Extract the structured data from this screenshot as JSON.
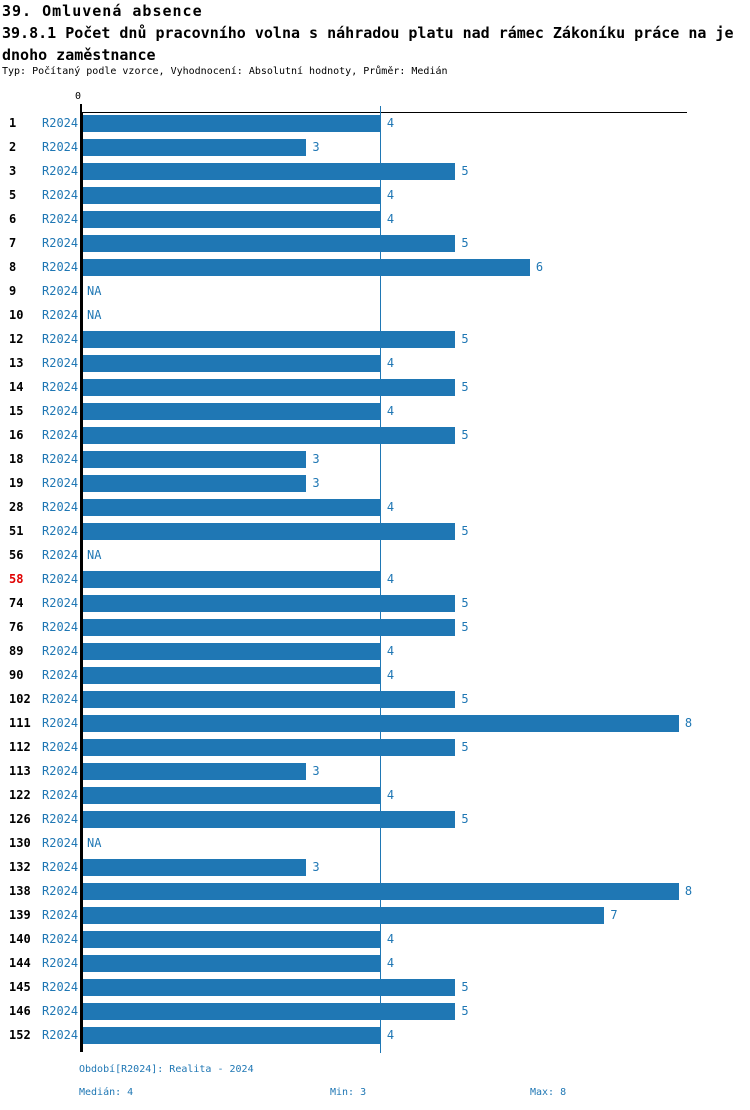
{
  "header": {
    "section_title": "39. Omluvená absence",
    "metric_title_line1": "39.8.1 Počet dnů pracovního volna s náhradou platu nad rámec Zákoníku práce na je",
    "metric_title_line2": "dnoho zaměstnance",
    "meta": "Typ: Počítaný podle vzorce, Vyhodnocení: Absolutní hodnoty, Průměr: Medián"
  },
  "chart_data": {
    "type": "bar",
    "orientation": "horizontal",
    "title": "39.8.1 Počet dnů pracovního volna s náhradou platu nad rámec Zákoníku práce na jednoho zaměstnance",
    "series_label": "R2024",
    "na_label": "NA",
    "zero_tick_label": "0",
    "xlim": [
      0,
      8.15
    ],
    "grid": false,
    "median_reference_line": 4,
    "highlighted_row_id": "58",
    "bar_color": "#1f77b4",
    "label_color": "#1f77b4",
    "row_number_color": "#000000",
    "highlight_color": "#e00000",
    "rows": [
      {
        "id": "1",
        "value": 4
      },
      {
        "id": "2",
        "value": 3
      },
      {
        "id": "3",
        "value": 5
      },
      {
        "id": "5",
        "value": 4
      },
      {
        "id": "6",
        "value": 4
      },
      {
        "id": "7",
        "value": 5
      },
      {
        "id": "8",
        "value": 6
      },
      {
        "id": "9",
        "value": null
      },
      {
        "id": "10",
        "value": null
      },
      {
        "id": "12",
        "value": 5
      },
      {
        "id": "13",
        "value": 4
      },
      {
        "id": "14",
        "value": 5
      },
      {
        "id": "15",
        "value": 4
      },
      {
        "id": "16",
        "value": 5
      },
      {
        "id": "18",
        "value": 3
      },
      {
        "id": "19",
        "value": 3
      },
      {
        "id": "28",
        "value": 4
      },
      {
        "id": "51",
        "value": 5
      },
      {
        "id": "56",
        "value": null
      },
      {
        "id": "58",
        "value": 4
      },
      {
        "id": "74",
        "value": 5
      },
      {
        "id": "76",
        "value": 5
      },
      {
        "id": "89",
        "value": 4
      },
      {
        "id": "90",
        "value": 4
      },
      {
        "id": "102",
        "value": 5
      },
      {
        "id": "111",
        "value": 8
      },
      {
        "id": "112",
        "value": 5
      },
      {
        "id": "113",
        "value": 3
      },
      {
        "id": "122",
        "value": 4
      },
      {
        "id": "126",
        "value": 5
      },
      {
        "id": "130",
        "value": null
      },
      {
        "id": "132",
        "value": 3
      },
      {
        "id": "138",
        "value": 8
      },
      {
        "id": "139",
        "value": 7
      },
      {
        "id": "140",
        "value": 4
      },
      {
        "id": "144",
        "value": 4
      },
      {
        "id": "145",
        "value": 5
      },
      {
        "id": "146",
        "value": 5
      },
      {
        "id": "152",
        "value": 4
      }
    ]
  },
  "footer": {
    "period": "Období[R2024]: Realita - 2024",
    "median": "Medián: 4",
    "min": "Min: 3",
    "max": "Max: 8"
  }
}
